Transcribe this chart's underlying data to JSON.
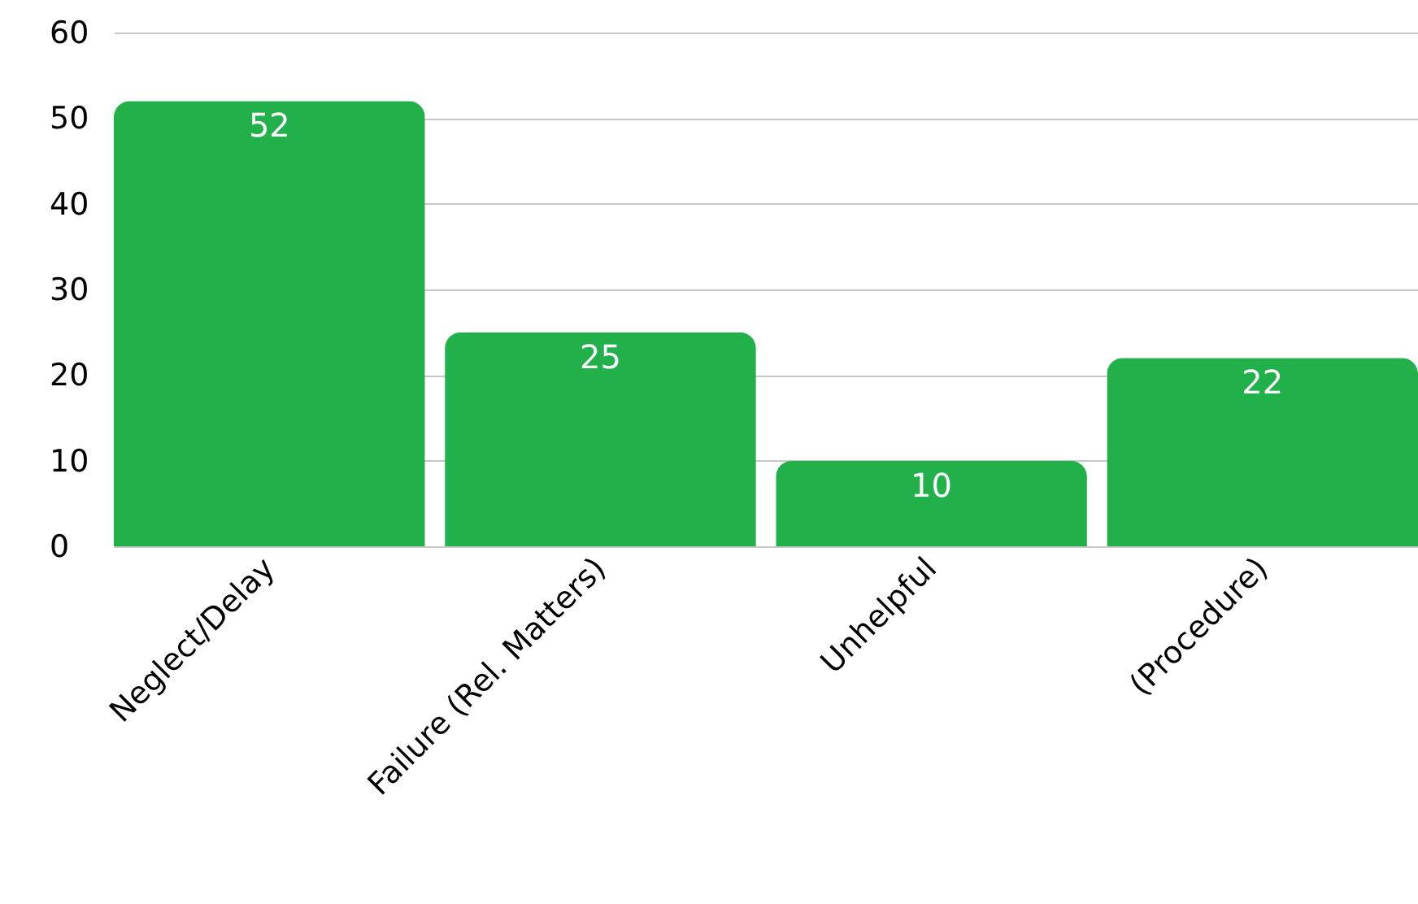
{
  "chart_data": {
    "type": "bar",
    "categories": [
      "Neglect/Delay",
      "Failure (Rel. Matters)",
      "Unhelpful",
      "(Procedure)"
    ],
    "values": [
      52,
      25,
      10,
      22
    ],
    "color": "#22b04b",
    "ylim": [
      0,
      60
    ],
    "yticks": [
      0,
      10,
      20,
      30,
      40,
      50,
      60
    ],
    "grid": "y",
    "data_labels": true
  }
}
